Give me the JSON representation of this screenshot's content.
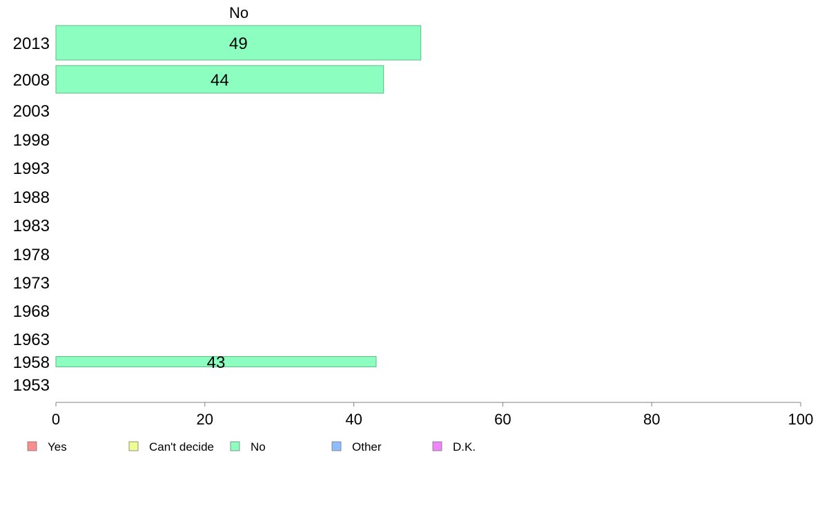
{
  "chart_data": {
    "type": "bar",
    "orientation": "horizontal",
    "panel_title": "No",
    "categories": [
      "2013",
      "2008",
      "2003",
      "1998",
      "1993",
      "1988",
      "1983",
      "1978",
      "1973",
      "1968",
      "1963",
      "1958",
      "1953"
    ],
    "series": [
      {
        "name": "No",
        "color": "#8cffc0",
        "values": [
          49,
          44,
          null,
          null,
          null,
          null,
          null,
          null,
          null,
          null,
          null,
          43,
          null
        ]
      }
    ],
    "xlim": [
      0,
      100
    ],
    "xticks": [
      "0",
      "20",
      "40",
      "60",
      "80",
      "100"
    ],
    "grid": false,
    "legend": {
      "placement": "bottom",
      "entries": [
        {
          "label": "Yes",
          "color": "#f88e8e"
        },
        {
          "label": "Can't decide",
          "color": "#eeff8e"
        },
        {
          "label": "No",
          "color": "#8cffc0"
        },
        {
          "label": "Other",
          "color": "#8ebcff"
        },
        {
          "label": "D.K.",
          "color": "#ef84fb"
        }
      ]
    }
  }
}
